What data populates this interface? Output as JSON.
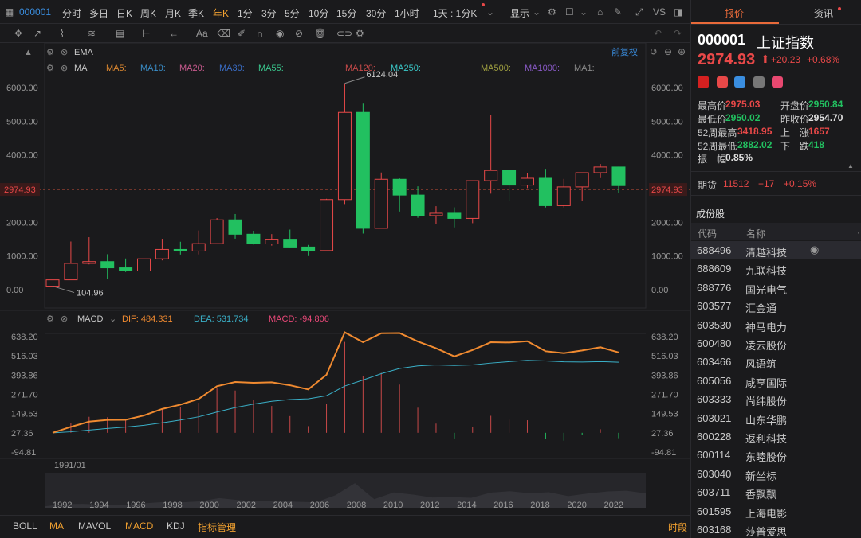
{
  "toolbar": {
    "code": "000001",
    "periods": [
      "分时",
      "多日",
      "日K",
      "周K",
      "月K",
      "季K",
      "年K",
      "1分",
      "3分",
      "5分",
      "10分",
      "15分",
      "30分",
      "1小时"
    ],
    "active_period": "年K",
    "interval": "1天 : 1分K",
    "display": "显示",
    "vs": "VS"
  },
  "chart_header": {
    "ema": "EMA",
    "ma": "MA",
    "ma_list": [
      {
        "label": "MA5:",
        "color": "#e08a30"
      },
      {
        "label": "MA10:",
        "color": "#3a8ec8"
      },
      {
        "label": "MA20:",
        "color": "#c85a8e"
      },
      {
        "label": "MA30:",
        "color": "#3a6ec8"
      },
      {
        "label": "MA55:",
        "color": "#3ac88e"
      },
      {
        "label": "MA120:",
        "color": "#c84a4a"
      },
      {
        "label": "MA250:",
        "color": "#3ac8c8"
      },
      {
        "label": "MA500:",
        "color": "#a0a040"
      },
      {
        "label": "MA1000:",
        "color": "#8a5ac8"
      },
      {
        "label": "MA1:",
        "color": "#8a8a8a"
      }
    ],
    "restore": "前复权"
  },
  "price_axis": {
    "left": [
      "6000.00",
      "5000.00",
      "4000.00",
      "2000.00",
      "1000.00",
      "0.00"
    ],
    "right": [
      "6000.00",
      "5000.00",
      "4000.00",
      "2000.00",
      "1000.00",
      "0.00"
    ],
    "current": "2974.93",
    "high_label": "6124.04",
    "low_label": "104.96"
  },
  "macd": {
    "title": "MACD",
    "dif": "DIF: 484.331",
    "dea": "DEA: 531.734",
    "macd": "MACD: -94.806",
    "axis": [
      "638.20",
      "516.03",
      "393.86",
      "271.70",
      "149.53",
      "27.36",
      "-94.81"
    ]
  },
  "time_axis": {
    "start": "1991/01",
    "years": [
      "1992",
      "1994",
      "1996",
      "1998",
      "2000",
      "2002",
      "2004",
      "2006",
      "2008",
      "2010",
      "2012",
      "2014",
      "2016",
      "2018",
      "2020",
      "2022"
    ]
  },
  "bottom_tabs": [
    "BOLL",
    "MA",
    "MAVOL",
    "MACD",
    "KDJ",
    "指标管理"
  ],
  "bottom_right": "时段",
  "side": {
    "tab_quote": "报价",
    "tab_news": "资讯",
    "code": "000001",
    "name": "上证指数",
    "price": "2974.93",
    "change": "+20.23",
    "pct": "+0.68%",
    "stats": [
      {
        "l": "最高价",
        "v": "2975.03",
        "c": "#e84848"
      },
      {
        "l": "开盘价",
        "v": "2950.84",
        "c": "#22c060"
      },
      {
        "l": "最低价",
        "v": "2950.02",
        "c": "#22c060"
      },
      {
        "l": "昨收价",
        "v": "2954.70",
        "c": "#e0e0e0"
      },
      {
        "l": "52周最高",
        "v": "3418.95",
        "c": "#e84848"
      },
      {
        "l": "上　涨",
        "v": "1657",
        "c": "#e84848"
      },
      {
        "l": "52周最低",
        "v": "2882.02",
        "c": "#22c060"
      },
      {
        "l": "下　跌",
        "v": "418",
        "c": "#22c060"
      }
    ],
    "amp_label": "振　幅",
    "amp": "0.85%",
    "futures_label": "期货",
    "futures": "11512",
    "fut_chg": "+17",
    "fut_pct": "+0.15%",
    "components": "成份股",
    "col_code": "代码",
    "col_name": "名称",
    "stocks": [
      {
        "c": "688496",
        "n": "清越科技"
      },
      {
        "c": "688609",
        "n": "九联科技"
      },
      {
        "c": "688776",
        "n": "国光电气"
      },
      {
        "c": "603577",
        "n": "汇金通"
      },
      {
        "c": "603530",
        "n": "神马电力"
      },
      {
        "c": "600480",
        "n": "凌云股份"
      },
      {
        "c": "603466",
        "n": "风语筑"
      },
      {
        "c": "605056",
        "n": "咸亨国际"
      },
      {
        "c": "603333",
        "n": "尚纬股份"
      },
      {
        "c": "603021",
        "n": "山东华鹏"
      },
      {
        "c": "600228",
        "n": "返利科技"
      },
      {
        "c": "600114",
        "n": "东睦股份"
      },
      {
        "c": "603040",
        "n": "新坐标"
      },
      {
        "c": "603711",
        "n": "香飘飘"
      },
      {
        "c": "601595",
        "n": "上海电影"
      },
      {
        "c": "603168",
        "n": "莎普爱思"
      }
    ]
  },
  "chart_data": {
    "type": "candlestick",
    "x": [
      "1991",
      "1992",
      "1993",
      "1994",
      "1995",
      "1996",
      "1997",
      "1998",
      "1999",
      "2000",
      "2001",
      "2002",
      "2003",
      "2004",
      "2005",
      "2006",
      "2007",
      "2008",
      "2009",
      "2010",
      "2011",
      "2012",
      "2013",
      "2014",
      "2015",
      "2016",
      "2017",
      "2018",
      "2019",
      "2020",
      "2021",
      "2022"
    ],
    "ohlc": [
      [
        105,
        292,
        105,
        292
      ],
      [
        293,
        1429,
        293,
        780
      ],
      [
        780,
        1558,
        750,
        833
      ],
      [
        833,
        1053,
        325,
        648
      ],
      [
        648,
        926,
        525,
        555
      ],
      [
        555,
        1259,
        513,
        917
      ],
      [
        917,
        1510,
        870,
        1194
      ],
      [
        1194,
        1423,
        1043,
        1147
      ],
      [
        1147,
        1756,
        1047,
        1367
      ],
      [
        1367,
        2126,
        1361,
        2073
      ],
      [
        2073,
        2245,
        1514,
        1646
      ],
      [
        1646,
        1748,
        1339,
        1358
      ],
      [
        1358,
        1650,
        1307,
        1497
      ],
      [
        1497,
        1783,
        1259,
        1266
      ],
      [
        1266,
        1328,
        998,
        1161
      ],
      [
        1161,
        2698,
        1161,
        2675
      ],
      [
        2675,
        6124,
        2541,
        5262
      ],
      [
        5262,
        5522,
        1664,
        1821
      ],
      [
        1821,
        3478,
        1845,
        3277
      ],
      [
        3277,
        3306,
        2319,
        2808
      ],
      [
        2808,
        3067,
        2134,
        2199
      ],
      [
        2199,
        2478,
        1949,
        2269
      ],
      [
        2269,
        2444,
        1849,
        2116
      ],
      [
        2116,
        3239,
        1974,
        3235
      ],
      [
        3235,
        5178,
        2850,
        3539
      ],
      [
        3539,
        3539,
        2638,
        3104
      ],
      [
        3104,
        3450,
        3016,
        3307
      ],
      [
        3307,
        3587,
        2440,
        2494
      ],
      [
        2494,
        3288,
        2440,
        3050
      ],
      [
        3050,
        3474,
        2646,
        3473
      ],
      [
        3473,
        3731,
        3312,
        3640
      ],
      [
        3640,
        3651,
        2863,
        3089
      ]
    ],
    "macd": {
      "dif_last": 484.331,
      "dea_last": 531.734,
      "macd_last": -94.806
    },
    "ylim": [
      0,
      6600
    ]
  }
}
